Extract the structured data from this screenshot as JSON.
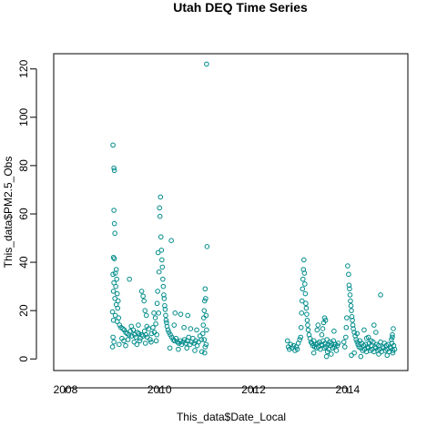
{
  "chart_data": {
    "type": "scatter",
    "title": "Utah DEQ Time Series",
    "xlabel": "This_data$Date_Local",
    "ylabel": "This_data$PM2.5_Obs",
    "xlim": [
      2007.75,
      2015.28
    ],
    "ylim": [
      -4.8,
      126.3
    ],
    "x_ticks": [
      2008,
      2010,
      2012,
      2014
    ],
    "x_tick_labels": [
      "2008",
      "2010",
      "2012",
      "2014"
    ],
    "y_ticks": [
      0,
      20,
      40,
      60,
      80,
      100,
      120
    ],
    "y_tick_labels": [
      "0",
      "20",
      "40",
      "60",
      "80",
      "100",
      "120"
    ],
    "grid": false,
    "legend": "none",
    "marker": "open-circle",
    "point_color": "#008b8b",
    "points": [
      [
        2009.01,
        88.5
      ],
      [
        2009.03,
        79.0
      ],
      [
        2009.04,
        78.0
      ],
      [
        2009.03,
        61.5
      ],
      [
        2009.04,
        56.0
      ],
      [
        2009.05,
        52.0
      ],
      [
        2009.02,
        42.0
      ],
      [
        2009.04,
        41.5
      ],
      [
        2009.01,
        35.0
      ],
      [
        2009.06,
        35.5
      ],
      [
        2009.08,
        37.0
      ],
      [
        2009.09,
        33.0
      ],
      [
        2009.03,
        31.5
      ],
      [
        2009.07,
        30.0
      ],
      [
        2009.02,
        28.0
      ],
      [
        2009.1,
        27.0
      ],
      [
        2009.05,
        25.0
      ],
      [
        2009.12,
        24.0
      ],
      [
        2009.08,
        22.5
      ],
      [
        2009.11,
        21.0
      ],
      [
        2009.0,
        19.5
      ],
      [
        2009.06,
        18.0
      ],
      [
        2009.13,
        17.0
      ],
      [
        2009.02,
        16.0
      ],
      [
        2009.1,
        15.5
      ],
      [
        2009.15,
        14.0
      ],
      [
        2009.18,
        13.0
      ],
      [
        2009.22,
        12.5
      ],
      [
        2009.25,
        12.0
      ],
      [
        2009.28,
        11.0
      ],
      [
        2009.31,
        10.5
      ],
      [
        2009.35,
        10.0
      ],
      [
        2009.38,
        11.5
      ],
      [
        2009.41,
        9.5
      ],
      [
        2009.44,
        12.0
      ],
      [
        2009.47,
        10.0
      ],
      [
        2009.5,
        9.0
      ],
      [
        2009.53,
        11.0
      ],
      [
        2009.56,
        10.5
      ],
      [
        2009.59,
        8.5
      ],
      [
        2009.62,
        10.0
      ],
      [
        2009.65,
        9.5
      ],
      [
        2009.68,
        11.5
      ],
      [
        2009.71,
        10.0
      ],
      [
        2009.74,
        9.0
      ],
      [
        2009.77,
        12.5
      ],
      [
        2009.8,
        8.0
      ],
      [
        2009.83,
        10.5
      ],
      [
        2009.86,
        13.0
      ],
      [
        2009.89,
        11.0
      ],
      [
        2009.92,
        14.5
      ],
      [
        2009.2,
        8.5
      ],
      [
        2009.24,
        7.5
      ],
      [
        2009.33,
        8.0
      ],
      [
        2009.46,
        7.0
      ],
      [
        2009.58,
        7.5
      ],
      [
        2009.7,
        6.5
      ],
      [
        2009.82,
        7.0
      ],
      [
        2009.4,
        13.5
      ],
      [
        2009.55,
        14.0
      ],
      [
        2009.73,
        13.5
      ],
      [
        2009.36,
        33.0
      ],
      [
        2009.62,
        28.0
      ],
      [
        2009.65,
        26.0
      ],
      [
        2009.67,
        24.0
      ],
      [
        2009.69,
        20.0
      ],
      [
        2009.72,
        18.0
      ],
      [
        2009.88,
        19.0
      ],
      [
        2009.91,
        17.0
      ],
      [
        2009.14,
        6.0
      ],
      [
        2009.28,
        5.5
      ],
      [
        2009.52,
        6.0
      ],
      [
        2009.01,
        9.0
      ],
      [
        2009.03,
        7.0
      ],
      [
        2009.0,
        5.0
      ],
      [
        2010.02,
        67.0
      ],
      [
        2010.0,
        62.5
      ],
      [
        2010.01,
        59.0
      ],
      [
        2010.03,
        50.5
      ],
      [
        2010.04,
        45.0
      ],
      [
        2009.97,
        44.0
      ],
      [
        2010.05,
        41.0
      ],
      [
        2010.06,
        38.0
      ],
      [
        2009.99,
        36.0
      ],
      [
        2010.07,
        33.0
      ],
      [
        2010.08,
        30.0
      ],
      [
        2009.96,
        28.0
      ],
      [
        2010.09,
        26.5
      ],
      [
        2010.1,
        25.0
      ],
      [
        2009.95,
        23.0
      ],
      [
        2010.11,
        22.0
      ],
      [
        2010.12,
        20.5
      ],
      [
        2009.98,
        19.0
      ],
      [
        2010.13,
        18.0
      ],
      [
        2010.14,
        16.0
      ],
      [
        2010.15,
        15.0
      ],
      [
        2010.16,
        13.5
      ],
      [
        2010.18,
        12.0
      ],
      [
        2010.2,
        11.0
      ],
      [
        2010.23,
        10.0
      ],
      [
        2010.26,
        9.0
      ],
      [
        2010.29,
        8.0
      ],
      [
        2010.32,
        7.5
      ],
      [
        2010.35,
        8.5
      ],
      [
        2010.38,
        7.0
      ],
      [
        2010.41,
        6.5
      ],
      [
        2010.44,
        7.5
      ],
      [
        2010.47,
        6.0
      ],
      [
        2010.5,
        7.0
      ],
      [
        2010.53,
        8.0
      ],
      [
        2010.56,
        6.5
      ],
      [
        2010.59,
        7.5
      ],
      [
        2010.62,
        9.0
      ],
      [
        2010.65,
        6.0
      ],
      [
        2010.68,
        7.0
      ],
      [
        2010.71,
        8.5
      ],
      [
        2010.74,
        6.5
      ],
      [
        2010.77,
        7.5
      ],
      [
        2010.8,
        5.5
      ],
      [
        2010.83,
        7.0
      ],
      [
        2010.86,
        9.5
      ],
      [
        2010.89,
        8.0
      ],
      [
        2010.22,
        4.5
      ],
      [
        2010.4,
        4.0
      ],
      [
        2010.58,
        4.5
      ],
      [
        2010.75,
        3.5
      ],
      [
        2010.25,
        49.0
      ],
      [
        2010.33,
        19.0
      ],
      [
        2010.45,
        18.5
      ],
      [
        2010.6,
        18.0
      ],
      [
        2010.31,
        14.0
      ],
      [
        2010.52,
        13.0
      ],
      [
        2010.66,
        12.5
      ],
      [
        2010.79,
        12.0
      ],
      [
        2009.94,
        10.0
      ],
      [
        2009.93,
        7.5
      ],
      [
        2010.9,
        3.0
      ],
      [
        2010.92,
        10.5
      ],
      [
        2010.93,
        14.0
      ],
      [
        2010.94,
        17.0
      ],
      [
        2010.95,
        20.0
      ],
      [
        2010.96,
        24.0
      ],
      [
        2010.97,
        29.0
      ],
      [
        2010.98,
        25.0
      ],
      [
        2010.99,
        18.0
      ],
      [
        2010.95,
        8.0
      ],
      [
        2010.97,
        5.0
      ],
      [
        2011.0,
        122.0
      ],
      [
        2011.01,
        46.5
      ],
      [
        2011.0,
        12.0
      ],
      [
        2010.96,
        2.5
      ],
      [
        2010.99,
        6.0
      ],
      [
        2012.72,
        7.5
      ],
      [
        2012.74,
        5.0
      ],
      [
        2012.76,
        4.0
      ],
      [
        2012.79,
        6.0
      ],
      [
        2012.82,
        4.5
      ],
      [
        2012.85,
        5.5
      ],
      [
        2012.88,
        3.5
      ],
      [
        2012.91,
        5.0
      ],
      [
        2012.93,
        4.0
      ],
      [
        2012.95,
        6.5
      ],
      [
        2012.98,
        8.0
      ],
      [
        2013.0,
        9.0
      ],
      [
        2013.01,
        13.0
      ],
      [
        2013.02,
        19.0
      ],
      [
        2013.03,
        24.0
      ],
      [
        2013.04,
        29.0
      ],
      [
        2013.05,
        33.0
      ],
      [
        2013.06,
        37.0
      ],
      [
        2013.07,
        41.0
      ],
      [
        2013.08,
        35.5
      ],
      [
        2013.09,
        31.0
      ],
      [
        2013.1,
        27.0
      ],
      [
        2013.11,
        23.0
      ],
      [
        2013.12,
        21.0
      ],
      [
        2013.13,
        18.5
      ],
      [
        2013.14,
        16.0
      ],
      [
        2013.15,
        14.0
      ],
      [
        2013.16,
        12.0
      ],
      [
        2013.18,
        10.0
      ],
      [
        2013.2,
        8.5
      ],
      [
        2013.22,
        7.0
      ],
      [
        2013.24,
        6.5
      ],
      [
        2013.26,
        5.5
      ],
      [
        2013.28,
        7.5
      ],
      [
        2013.3,
        5.0
      ],
      [
        2013.32,
        6.0
      ],
      [
        2013.34,
        4.5
      ],
      [
        2013.36,
        6.5
      ],
      [
        2013.38,
        5.0
      ],
      [
        2013.4,
        7.0
      ],
      [
        2013.42,
        4.0
      ],
      [
        2013.44,
        6.0
      ],
      [
        2013.46,
        5.5
      ],
      [
        2013.48,
        7.5
      ],
      [
        2013.5,
        4.5
      ],
      [
        2013.52,
        6.5
      ],
      [
        2013.54,
        5.0
      ],
      [
        2013.56,
        8.0
      ],
      [
        2013.58,
        6.0
      ],
      [
        2013.6,
        4.0
      ],
      [
        2013.62,
        7.0
      ],
      [
        2013.64,
        5.5
      ],
      [
        2013.66,
        6.5
      ],
      [
        2013.68,
        4.5
      ],
      [
        2013.7,
        7.5
      ],
      [
        2013.72,
        5.0
      ],
      [
        2013.74,
        6.0
      ],
      [
        2013.76,
        3.5
      ],
      [
        2013.45,
        10.0
      ],
      [
        2013.47,
        12.5
      ],
      [
        2013.49,
        15.0
      ],
      [
        2013.51,
        17.0
      ],
      [
        2013.53,
        16.0
      ],
      [
        2013.35,
        12.0
      ],
      [
        2013.37,
        14.0
      ],
      [
        2013.55,
        1.0
      ],
      [
        2013.57,
        3.0
      ],
      [
        2013.65,
        2.0
      ],
      [
        2013.71,
        11.5
      ],
      [
        2013.28,
        2.5
      ],
      [
        2013.78,
        5.5
      ],
      [
        2013.8,
        6.5
      ],
      [
        2013.92,
        7.0
      ],
      [
        2013.94,
        5.0
      ],
      [
        2013.96,
        9.0
      ],
      [
        2013.97,
        13.0
      ],
      [
        2013.98,
        17.0
      ],
      [
        2014.0,
        38.5
      ],
      [
        2014.02,
        35.0
      ],
      [
        2014.03,
        30.5
      ],
      [
        2014.04,
        29.0
      ],
      [
        2014.05,
        26.5
      ],
      [
        2014.06,
        24.0
      ],
      [
        2014.07,
        22.0
      ],
      [
        2014.08,
        20.0
      ],
      [
        2014.09,
        17.5
      ],
      [
        2014.1,
        16.0
      ],
      [
        2014.11,
        14.0
      ],
      [
        2014.12,
        12.5
      ],
      [
        2014.14,
        11.0
      ],
      [
        2014.16,
        9.5
      ],
      [
        2014.18,
        8.0
      ],
      [
        2014.2,
        7.0
      ],
      [
        2014.22,
        6.0
      ],
      [
        2014.24,
        5.0
      ],
      [
        2014.26,
        7.5
      ],
      [
        2014.28,
        4.5
      ],
      [
        2014.3,
        6.5
      ],
      [
        2014.32,
        3.5
      ],
      [
        2014.34,
        5.5
      ],
      [
        2014.36,
        4.0
      ],
      [
        2014.38,
        6.0
      ],
      [
        2014.4,
        3.0
      ],
      [
        2014.42,
        5.0
      ],
      [
        2014.44,
        4.5
      ],
      [
        2014.46,
        6.5
      ],
      [
        2014.48,
        3.5
      ],
      [
        2014.5,
        5.5
      ],
      [
        2014.52,
        4.0
      ],
      [
        2014.54,
        7.0
      ],
      [
        2014.56,
        3.0
      ],
      [
        2014.58,
        5.0
      ],
      [
        2014.6,
        4.5
      ],
      [
        2014.62,
        6.0
      ],
      [
        2014.64,
        3.5
      ],
      [
        2014.66,
        5.5
      ],
      [
        2014.68,
        4.0
      ],
      [
        2014.7,
        7.0
      ],
      [
        2014.72,
        3.0
      ],
      [
        2014.74,
        5.0
      ],
      [
        2014.76,
        4.5
      ],
      [
        2014.78,
        6.5
      ],
      [
        2014.8,
        3.5
      ],
      [
        2014.82,
        5.5
      ],
      [
        2014.84,
        4.0
      ],
      [
        2014.86,
        6.0
      ],
      [
        2014.88,
        3.0
      ],
      [
        2014.9,
        5.0
      ],
      [
        2014.92,
        4.5
      ],
      [
        2014.94,
        6.5
      ],
      [
        2014.96,
        3.5
      ],
      [
        2014.98,
        5.5
      ],
      [
        2015.0,
        4.0
      ],
      [
        2014.93,
        8.0
      ],
      [
        2014.95,
        10.0
      ],
      [
        2014.97,
        12.5
      ],
      [
        2014.95,
        9.0
      ],
      [
        2014.56,
        14.0
      ],
      [
        2014.6,
        11.0
      ],
      [
        2014.44,
        9.0
      ],
      [
        2014.5,
        7.5
      ],
      [
        2014.7,
        26.5
      ],
      [
        2014.2,
        10.5
      ],
      [
        2014.35,
        12.0
      ],
      [
        2014.4,
        8.5
      ],
      [
        2014.08,
        1.5
      ],
      [
        2014.14,
        2.5
      ],
      [
        2014.28,
        1.0
      ],
      [
        2014.66,
        2.0
      ],
      [
        2014.84,
        1.5
      ],
      [
        2014.96,
        2.5
      ]
    ]
  }
}
